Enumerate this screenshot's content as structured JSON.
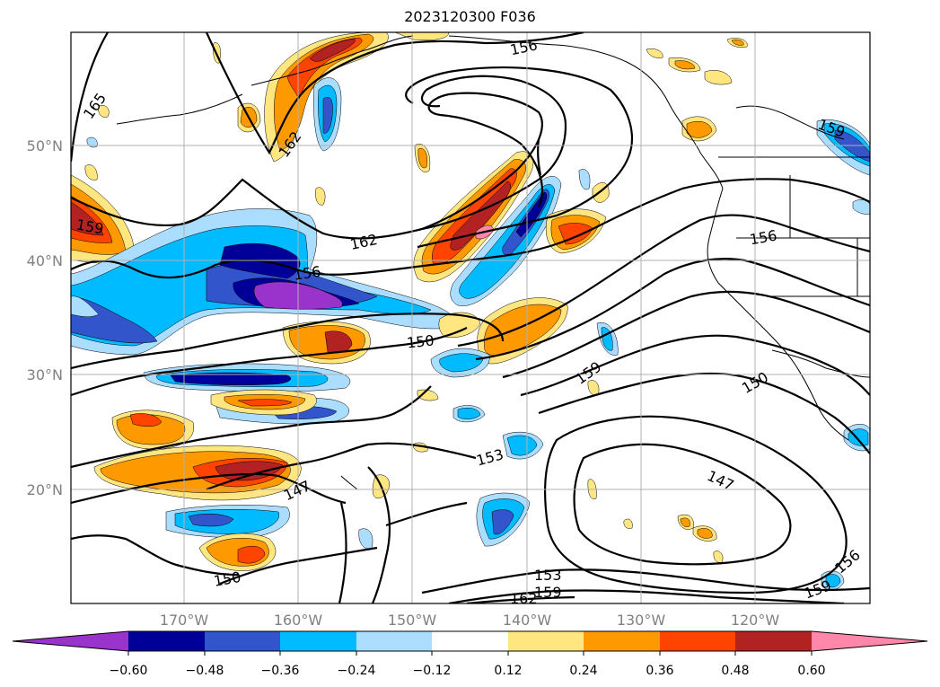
{
  "title": "2023120300 F036",
  "colors": {
    "neg_060": "#9933cc",
    "neg_048": "#000099",
    "neg_036": "#3355cc",
    "neg_024": "#00bbff",
    "neg_012": "#aaddff",
    "zero": "#ffffff",
    "pos_012": "#ffe680",
    "pos_024": "#ff9900",
    "pos_036": "#ff4400",
    "pos_048": "#b22222",
    "pos_060": "#ff88aa",
    "grid": "#b0b0b0",
    "contour": "#000000",
    "coast": "#000000"
  },
  "axes": {
    "lat_ticks": [
      "20°N",
      "30°N",
      "40°N",
      "50°N"
    ],
    "lon_ticks": [
      "170°W",
      "160°W",
      "150°W",
      "140°W",
      "130°W",
      "120°W"
    ]
  },
  "colorbar": {
    "ticks": [
      "−0.60",
      "−0.48",
      "−0.36",
      "−0.24",
      "−0.12",
      "0.12",
      "0.24",
      "0.36",
      "0.48",
      "0.60"
    ]
  },
  "contour_labels": [
    "165",
    "162",
    "159",
    "156",
    "162",
    "156",
    "150",
    "159",
    "150",
    "153",
    "147",
    "147",
    "150",
    "153",
    "159",
    "159",
    "156",
    "159",
    "156",
    "162"
  ]
}
